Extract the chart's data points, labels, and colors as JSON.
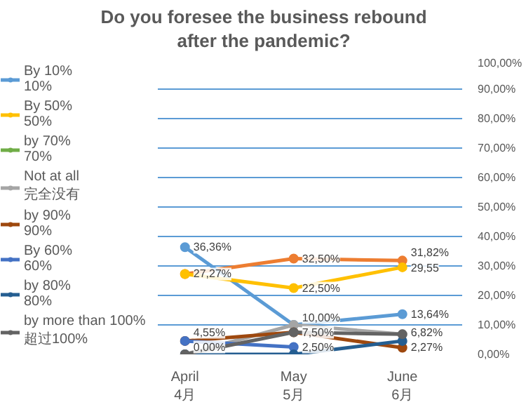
{
  "chart_data": {
    "type": "line",
    "title": "Do you foresee the business rebound\nafter the pandemic?",
    "categories": [
      "April\n4月",
      "May\n5月",
      "June\n6月"
    ],
    "ylim": [
      0,
      100
    ],
    "yticks": [
      {
        "value": 0,
        "label": "0,00%"
      },
      {
        "value": 10,
        "label": "10,00%"
      },
      {
        "value": 20,
        "label": "20,00%"
      },
      {
        "value": 30,
        "label": "30,00%"
      },
      {
        "value": 40,
        "label": "40,00%"
      },
      {
        "value": 50,
        "label": "50,00%"
      },
      {
        "value": 60,
        "label": "60,00%"
      },
      {
        "value": 70,
        "label": "70,00%"
      },
      {
        "value": 80,
        "label": "80,00%"
      },
      {
        "value": 90,
        "label": "90,00%"
      },
      {
        "value": 100,
        "label": "100,00%"
      }
    ],
    "grid": "y",
    "legend": "left",
    "marker": "circle",
    "line_style": "solid",
    "series": [
      {
        "color": "#ed7d31",
        "values": [
          27.27,
          32.5,
          31.82
        ],
        "value_labels": [
          "27,27%",
          "32,50%",
          "31,82%"
        ]
      },
      {
        "name": "By 10%\n10%",
        "color": "#5b9bd5",
        "values": [
          36.36,
          10.0,
          13.64
        ],
        "value_labels": [
          "36,36%",
          "10,00%",
          "13,64%"
        ]
      },
      {
        "name": "By 50%\n50%",
        "color": "#ffc000",
        "values": [
          27.27,
          22.5,
          29.55
        ],
        "value_labels": [
          null,
          "22,50%",
          "29,55"
        ]
      },
      {
        "name": "by 70%\n70%",
        "color": "#70ad47",
        "values": [
          null,
          null,
          null
        ]
      },
      {
        "name": "Not at all\n完全没有",
        "color": "#a5a5a5",
        "values": [
          0,
          10.0,
          6.82
        ],
        "value_labels": [
          null,
          null,
          "6,82%"
        ]
      },
      {
        "name": "by 90%\n90%",
        "color": "#9e480e",
        "values": [
          4.55,
          7.5,
          2.27
        ],
        "value_labels": [
          "4,55%",
          "7,50%",
          "2,27%"
        ]
      },
      {
        "name": "By 60%\n60%",
        "color": "#4472c4",
        "values": [
          4.55,
          2.5,
          null
        ],
        "value_labels": [
          null,
          "2,50%",
          null
        ]
      },
      {
        "name": "by 80%\n80%",
        "color": "#255e91",
        "values": [
          0,
          0,
          4.55
        ],
        "value_labels": [
          "0,00%",
          null,
          null
        ]
      },
      {
        "name": "by more than 100%\n超过100%",
        "color": "#636363",
        "values": [
          0,
          7.5,
          6.82
        ]
      }
    ]
  }
}
